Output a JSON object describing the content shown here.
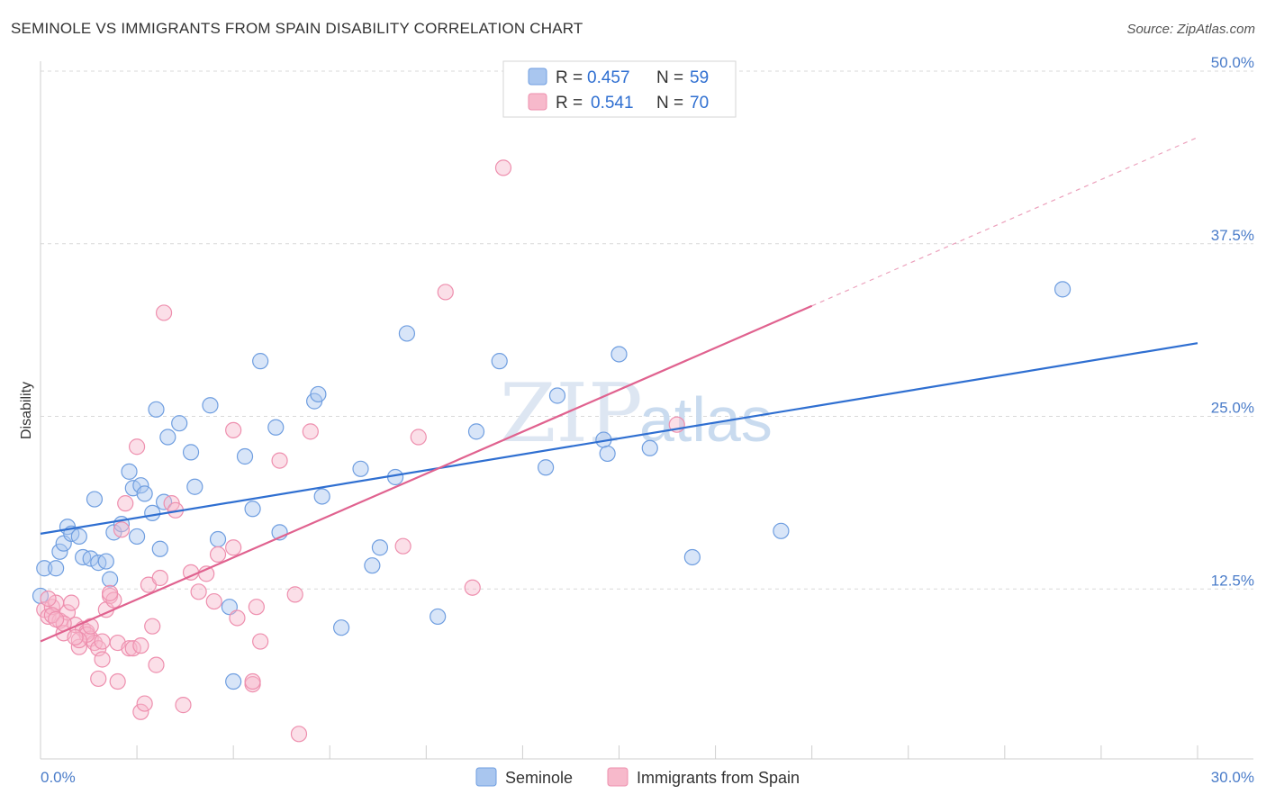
{
  "header": {
    "title": "SEMINOLE VS IMMIGRANTS FROM SPAIN DISABILITY CORRELATION CHART",
    "source": "Source: ZipAtlas.com"
  },
  "watermark": {
    "zip": "ZIP",
    "atlas": "atlas"
  },
  "legend": {
    "rows": [
      {
        "r_label": "R =",
        "r_value": "0.457",
        "n_label": "N =",
        "n_value": "59",
        "color": "#a9c6ef"
      },
      {
        "r_label": "R =",
        "r_value": "0.541",
        "n_label": "N =",
        "n_value": "70",
        "color": "#f7b9cb"
      }
    ]
  },
  "colors": {
    "seminole_fill": "#a9c6ef",
    "seminole_stroke": "#6f9ee0",
    "seminole_line": "#2f6fd1",
    "spain_fill": "#f7b9cb",
    "spain_stroke": "#ee8fae",
    "spain_line": "#e0628f",
    "grid": "#d9d9d9",
    "axis_tick": "#4a7cc9"
  },
  "chart_data": {
    "type": "scatter",
    "title": "SEMINOLE VS IMMIGRANTS FROM SPAIN DISABILITY CORRELATION CHART",
    "xlabel": "",
    "ylabel": "Disability",
    "xlim": [
      0,
      30
    ],
    "ylim": [
      0,
      50
    ],
    "x_tick_labels": [
      "0.0%",
      "30.0%"
    ],
    "y_ticks": [
      12.5,
      25.0,
      37.5,
      50.0
    ],
    "y_tick_labels": [
      "12.5%",
      "25.0%",
      "37.5%",
      "50.0%"
    ],
    "grid": "horizontal dashed",
    "legend_placement": "top-center",
    "series": [
      {
        "name": "Seminole",
        "r": 0.457,
        "n": 59,
        "trend": {
          "x": [
            0,
            30
          ],
          "y": [
            16.5,
            30.3
          ]
        },
        "points": [
          [
            0.1,
            14.0
          ],
          [
            0.4,
            14.0
          ],
          [
            0.5,
            15.2
          ],
          [
            0.6,
            15.8
          ],
          [
            0.7,
            17.0
          ],
          [
            0.8,
            16.5
          ],
          [
            1.0,
            16.3
          ],
          [
            1.1,
            14.8
          ],
          [
            1.3,
            14.7
          ],
          [
            1.4,
            19.0
          ],
          [
            1.5,
            14.4
          ],
          [
            1.7,
            14.5
          ],
          [
            1.8,
            13.2
          ],
          [
            1.9,
            16.6
          ],
          [
            2.1,
            17.2
          ],
          [
            2.3,
            21.0
          ],
          [
            2.4,
            19.8
          ],
          [
            2.5,
            16.3
          ],
          [
            2.6,
            20.0
          ],
          [
            2.7,
            19.4
          ],
          [
            2.9,
            18.0
          ],
          [
            3.0,
            25.5
          ],
          [
            3.1,
            15.4
          ],
          [
            3.2,
            18.8
          ],
          [
            3.3,
            23.5
          ],
          [
            3.6,
            24.5
          ],
          [
            3.9,
            22.4
          ],
          [
            4.0,
            19.9
          ],
          [
            4.4,
            25.8
          ],
          [
            4.6,
            16.1
          ],
          [
            4.9,
            11.2
          ],
          [
            5.0,
            5.8
          ],
          [
            5.3,
            22.1
          ],
          [
            5.5,
            18.3
          ],
          [
            5.7,
            29.0
          ],
          [
            6.2,
            16.6
          ],
          [
            6.1,
            24.2
          ],
          [
            7.1,
            26.1
          ],
          [
            7.2,
            26.6
          ],
          [
            7.3,
            19.2
          ],
          [
            7.8,
            9.7
          ],
          [
            8.3,
            21.2
          ],
          [
            8.6,
            14.2
          ],
          [
            8.8,
            15.5
          ],
          [
            9.2,
            20.6
          ],
          [
            9.5,
            31.0
          ],
          [
            10.3,
            10.5
          ],
          [
            11.3,
            23.9
          ],
          [
            11.9,
            29.0
          ],
          [
            13.1,
            21.3
          ],
          [
            13.4,
            26.5
          ],
          [
            14.6,
            23.3
          ],
          [
            14.7,
            22.3
          ],
          [
            15.0,
            29.5
          ],
          [
            15.8,
            22.7
          ],
          [
            16.9,
            14.8
          ],
          [
            19.2,
            16.7
          ],
          [
            26.5,
            34.2
          ],
          [
            0.0,
            12.0
          ]
        ]
      },
      {
        "name": "Immigrants from Spain",
        "r": 0.541,
        "n": 70,
        "trend": {
          "x": [
            0,
            20.0
          ],
          "y": [
            8.7,
            33.0
          ]
        },
        "trend_dashed": {
          "x": [
            20.0,
            30
          ],
          "y": [
            33.0,
            45.2
          ]
        },
        "points": [
          [
            0.1,
            11.0
          ],
          [
            0.2,
            10.5
          ],
          [
            0.3,
            11.2
          ],
          [
            0.4,
            11.5
          ],
          [
            0.5,
            10.2
          ],
          [
            0.6,
            9.3
          ],
          [
            0.7,
            10.8
          ],
          [
            0.8,
            11.5
          ],
          [
            0.9,
            9.9
          ],
          [
            1.0,
            8.3
          ],
          [
            1.1,
            9.6
          ],
          [
            1.2,
            9.4
          ],
          [
            1.3,
            8.9
          ],
          [
            1.4,
            8.6
          ],
          [
            1.5,
            8.2
          ],
          [
            1.6,
            7.4
          ],
          [
            1.7,
            11.0
          ],
          [
            1.8,
            12.0
          ],
          [
            1.9,
            11.7
          ],
          [
            2.0,
            8.6
          ],
          [
            2.1,
            16.8
          ],
          [
            2.2,
            18.7
          ],
          [
            2.3,
            8.2
          ],
          [
            2.4,
            8.2
          ],
          [
            2.5,
            22.8
          ],
          [
            2.6,
            3.6
          ],
          [
            2.7,
            4.2
          ],
          [
            2.8,
            12.8
          ],
          [
            2.9,
            9.8
          ],
          [
            3.0,
            7.0
          ],
          [
            3.1,
            13.3
          ],
          [
            3.2,
            32.5
          ],
          [
            3.4,
            18.7
          ],
          [
            3.5,
            18.2
          ],
          [
            3.7,
            4.1
          ],
          [
            3.9,
            13.7
          ],
          [
            4.1,
            12.3
          ],
          [
            4.3,
            13.6
          ],
          [
            4.5,
            11.6
          ],
          [
            4.6,
            15.0
          ],
          [
            5.0,
            24.0
          ],
          [
            5.0,
            15.5
          ],
          [
            5.1,
            10.4
          ],
          [
            5.5,
            5.6
          ],
          [
            5.6,
            11.2
          ],
          [
            5.7,
            8.7
          ],
          [
            6.2,
            21.8
          ],
          [
            6.6,
            12.1
          ],
          [
            6.7,
            2.0
          ],
          [
            7.0,
            23.9
          ],
          [
            9.8,
            23.5
          ],
          [
            9.4,
            15.6
          ],
          [
            10.5,
            34.0
          ],
          [
            11.2,
            12.6
          ],
          [
            12.0,
            43.0
          ],
          [
            16.5,
            24.4
          ],
          [
            1.2,
            9.2
          ],
          [
            1.5,
            6.0
          ],
          [
            2.0,
            5.8
          ],
          [
            1.0,
            8.8
          ],
          [
            0.3,
            10.6
          ],
          [
            0.6,
            10.0
          ],
          [
            1.8,
            12.2
          ],
          [
            2.6,
            8.4
          ],
          [
            1.3,
            9.8
          ],
          [
            0.2,
            11.8
          ],
          [
            5.5,
            5.8
          ],
          [
            0.9,
            9.0
          ],
          [
            1.6,
            8.7
          ],
          [
            0.4,
            10.3
          ]
        ]
      }
    ]
  },
  "bottom_legend": [
    {
      "label": "Seminole"
    },
    {
      "label": "Immigrants from Spain"
    }
  ]
}
